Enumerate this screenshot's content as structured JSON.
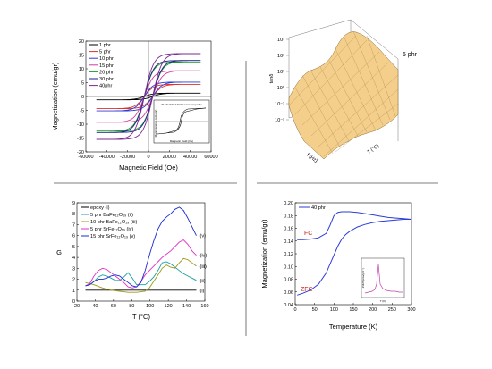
{
  "page": {
    "background": "#ffffff",
    "divider_color": "#555555"
  },
  "chart_data": [
    {
      "id": "hysteresis",
      "type": "line",
      "xlabel": "Magnetic Field (Oe)",
      "ylabel": "Magnetization (emu/gr)",
      "xlim": [
        -60000,
        60000
      ],
      "ylim": [
        -20,
        20
      ],
      "xticks": [
        "-60000",
        "-40000",
        "-20000",
        "0",
        "20000",
        "40000",
        "60000"
      ],
      "yticks": [
        "-20",
        "-15",
        "-10",
        "-5",
        "0",
        "5",
        "10",
        "15",
        "20"
      ],
      "legend_position": "top-left",
      "series": [
        {
          "name": "1 phr",
          "color": "#000000",
          "ms": 1.2,
          "mr": 0.6,
          "hc": 4000
        },
        {
          "name": "5 phr",
          "color": "#e0302a",
          "ms": 4.4,
          "mr": 2.2,
          "hc": 4000
        },
        {
          "name": "10 phr",
          "color": "#2a3cd6",
          "ms": 5.2,
          "mr": 2.6,
          "hc": 4000
        },
        {
          "name": "15 phr",
          "color": "#d03aa0",
          "ms": 9.3,
          "mr": 4.7,
          "hc": 4000
        },
        {
          "name": "20 phr",
          "color": "#1b9a2a",
          "ms": 12.5,
          "mr": 6.3,
          "hc": 4000
        },
        {
          "name": "30 phr",
          "color": "#1a1e8c",
          "ms": 13.0,
          "mr": 6.6,
          "hc": 4000
        },
        {
          "name": "40phr",
          "color": "#7a2a90",
          "ms": 15.5,
          "mr": 8.0,
          "hc": 4000
        }
      ],
      "inset": {
        "legend": "40 phr SrFe12O19 nanocomposite",
        "xlabel": "Magnetic Field (Oe)",
        "ylabel": "Magnetization (emu/gr)"
      }
    },
    {
      "id": "surface",
      "type": "surface",
      "zlabel": "tanδ",
      "annotation": "5 phr",
      "zticks": [
        "10³",
        "10²",
        "10¹",
        "10⁰",
        "10⁻¹",
        "10⁻²"
      ],
      "xlabel": "T (°C)",
      "ylabel": "f (Hz)",
      "surface_color": "#f4cf8c"
    },
    {
      "id": "gfactor",
      "type": "line",
      "xlabel": "T (°C)",
      "ylabel": "G",
      "xlim": [
        20,
        170
      ],
      "ylim": [
        0,
        9
      ],
      "xticks": [
        "20",
        "40",
        "60",
        "80",
        "100",
        "120",
        "140",
        "160"
      ],
      "yticks": [
        "0",
        "1",
        "2",
        "3",
        "4",
        "5",
        "6",
        "7",
        "8",
        "9"
      ],
      "legend_position": "top-left",
      "series": [
        {
          "name": "epoxy",
          "label": "(i)",
          "color": "#000000",
          "x": [
            30,
            40,
            60,
            80,
            100,
            120,
            140,
            160
          ],
          "y": [
            1.0,
            1.0,
            1.0,
            1.0,
            1.0,
            1.0,
            1.0,
            1.0
          ]
        },
        {
          "name": "5 phr BaFe₁₂O₁₉",
          "label": "(ii)",
          "color": "#1aa0a0",
          "x": [
            30,
            35,
            40,
            45,
            50,
            55,
            60,
            65,
            70,
            75,
            80,
            85,
            90,
            95,
            100,
            105,
            110,
            115,
            120,
            125,
            130,
            135,
            140,
            145,
            150,
            155,
            160
          ],
          "y": [
            1.4,
            1.5,
            1.8,
            2.2,
            2.4,
            2.3,
            2.1,
            1.9,
            1.9,
            2.2,
            2.6,
            2.1,
            1.5,
            1.5,
            1.5,
            1.8,
            2.2,
            2.8,
            3.5,
            3.6,
            3.4,
            3.1,
            2.8,
            2.5,
            2.3,
            2.1,
            1.9
          ]
        },
        {
          "name": "10 phr BaFe₁₂O₁₉",
          "label": "(iii)",
          "color": "#9a9a18",
          "x": [
            30,
            40,
            50,
            60,
            70,
            80,
            90,
            100,
            105,
            110,
            115,
            120,
            125,
            130,
            135,
            140,
            145,
            150,
            155,
            160
          ],
          "y": [
            1.7,
            1.5,
            1.2,
            1.0,
            0.9,
            0.8,
            0.8,
            0.9,
            1.2,
            1.8,
            2.4,
            3.0,
            3.3,
            3.1,
            3.0,
            3.5,
            3.9,
            3.8,
            3.5,
            3.2
          ]
        },
        {
          "name": "5 phr SrFe₁₂O₁₉",
          "label": "(iv)",
          "color": "#e030c8",
          "x": [
            30,
            35,
            40,
            45,
            50,
            55,
            60,
            65,
            70,
            75,
            80,
            85,
            90,
            95,
            100,
            105,
            110,
            115,
            120,
            125,
            130,
            135,
            140,
            145,
            150,
            155,
            160
          ],
          "y": [
            1.4,
            1.6,
            2.3,
            2.8,
            3.0,
            2.9,
            2.6,
            2.3,
            2.0,
            1.7,
            1.3,
            1.2,
            1.3,
            1.8,
            2.4,
            2.8,
            3.2,
            3.6,
            4.0,
            4.3,
            4.6,
            5.0,
            5.4,
            5.6,
            5.2,
            4.6,
            4.2
          ]
        },
        {
          "name": "15 phr SrFe₁₂O₁₉",
          "label": "(v)",
          "color": "#1a2cd0",
          "x": [
            30,
            35,
            40,
            45,
            50,
            55,
            60,
            65,
            70,
            75,
            80,
            85,
            90,
            95,
            100,
            105,
            110,
            115,
            120,
            125,
            130,
            135,
            140,
            145,
            150,
            155,
            160
          ],
          "y": [
            1.4,
            1.5,
            1.8,
            2.0,
            2.0,
            2.1,
            2.3,
            2.4,
            2.3,
            2.0,
            1.7,
            1.4,
            1.3,
            1.7,
            2.8,
            4.2,
            5.5,
            6.6,
            7.3,
            7.7,
            8.0,
            8.4,
            8.6,
            8.3,
            7.6,
            6.8,
            6.0
          ]
        }
      ]
    },
    {
      "id": "zfcfc",
      "type": "line",
      "xlabel": "Temperature (K)",
      "ylabel": "Magnetization (emu/gr)",
      "xlim": [
        0,
        300
      ],
      "ylim": [
        0.04,
        0.2
      ],
      "xticks": [
        "0",
        "50",
        "100",
        "150",
        "200",
        "250",
        "300"
      ],
      "yticks": [
        "0.04",
        "0.06",
        "0.08",
        "0.10",
        "0.12",
        "0.14",
        "0.16",
        "0.18",
        "0.20"
      ],
      "legend_position": "top-left",
      "fc_label": "FC",
      "zfc_label": "ZFC",
      "annotation_color": "#c0201c",
      "series": [
        {
          "name": "40 phr",
          "color": "#2a3cd6",
          "x": [
            5,
            20,
            40,
            60,
            80,
            90,
            100,
            110,
            120,
            140,
            160,
            180,
            200,
            220,
            240,
            260,
            280,
            300
          ],
          "y": [
            0.142,
            0.142,
            0.143,
            0.145,
            0.152,
            0.165,
            0.18,
            0.185,
            0.186,
            0.186,
            0.185,
            0.183,
            0.181,
            0.179,
            0.177,
            0.176,
            0.175,
            0.174
          ]
        },
        {
          "name": "",
          "color": "#2a3cd6",
          "x": [
            5,
            20,
            40,
            60,
            80,
            100,
            110,
            120,
            130,
            140,
            160,
            180,
            200,
            220,
            240,
            260,
            280,
            300
          ],
          "y": [
            0.055,
            0.058,
            0.063,
            0.072,
            0.09,
            0.118,
            0.132,
            0.143,
            0.15,
            0.155,
            0.162,
            0.166,
            0.169,
            0.171,
            0.172,
            0.173,
            0.174,
            0.174
          ]
        }
      ],
      "inset": {
        "xlabel": "T (K)",
        "ylabel": "dM/dT (emu/gr K⁻¹)",
        "color": "#c040b0"
      }
    }
  ]
}
